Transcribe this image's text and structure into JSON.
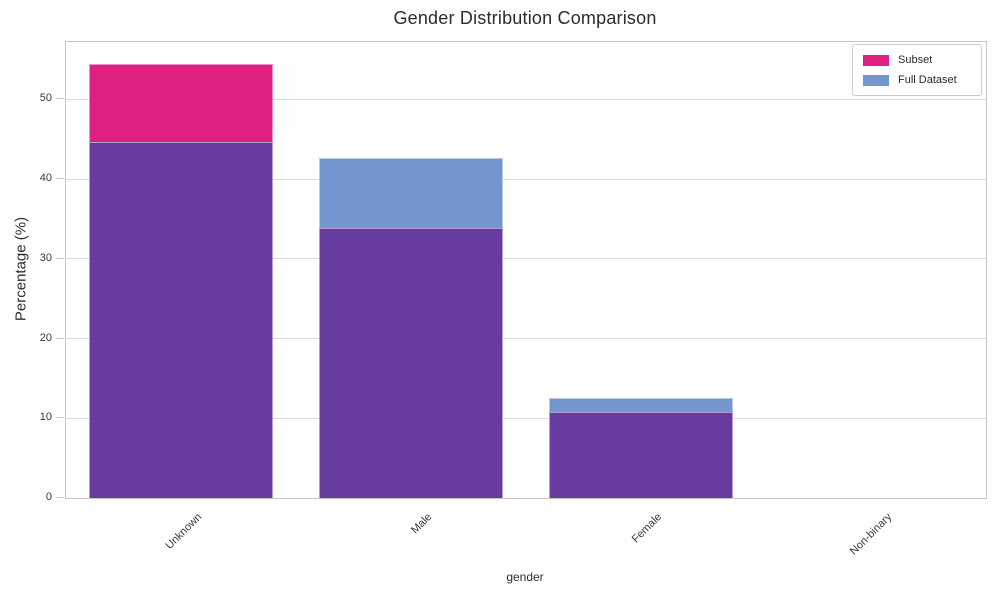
{
  "chart_data": {
    "type": "bar",
    "title": "Gender Distribution Comparison",
    "xlabel": "gender",
    "ylabel": "Percentage (%)",
    "categories": [
      "Unknown",
      "Male",
      "Female",
      "Non-binary"
    ],
    "series": [
      {
        "name": "Subset",
        "color": "#de2181",
        "values": [
          54.5,
          33.9,
          10.8,
          0.0
        ]
      },
      {
        "name": "Full Dataset",
        "color": "#7496ce",
        "values": [
          44.6,
          42.6,
          12.5,
          0.0
        ]
      }
    ],
    "overlap_color": "#683c9e",
    "ylim": [
      0,
      57.2
    ],
    "yticks": [
      0,
      10,
      20,
      30,
      40,
      50
    ],
    "grid": true,
    "legend_position": "upper right",
    "colors": {
      "grid": "#dcdcdc",
      "spine": "#c6c6c6",
      "tick_text": "#3a3a3a",
      "title_text": "#2b2b2b",
      "background": "#ffffff"
    }
  }
}
